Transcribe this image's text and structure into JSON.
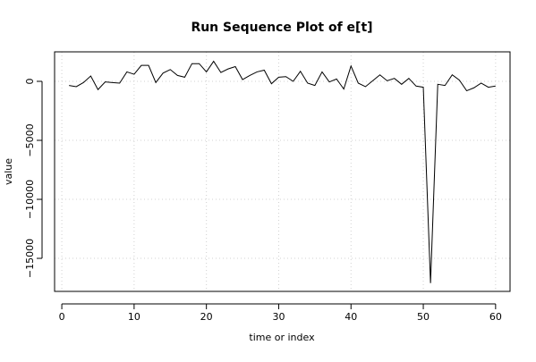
{
  "chart_data": {
    "type": "line",
    "title": "Run Sequence Plot of e[t]",
    "xlabel": "time or index",
    "ylabel": "value",
    "xlim": [
      -1,
      62
    ],
    "ylim": [
      -17800,
      2500
    ],
    "x_ticks": [
      0,
      10,
      20,
      30,
      40,
      50,
      60
    ],
    "y_ticks": [
      0,
      -5000,
      -10000,
      -15000
    ],
    "grid": true,
    "legend": "none",
    "series": [
      {
        "x": [
          1,
          2,
          3,
          4,
          5,
          6,
          7,
          8,
          9,
          10,
          11,
          12,
          13,
          14,
          15,
          16,
          17,
          18,
          19,
          20,
          21,
          22,
          23,
          24,
          25,
          26,
          27,
          28,
          29,
          30,
          31,
          32,
          33,
          34,
          35,
          36,
          37,
          38,
          39,
          40,
          41,
          42,
          43,
          44,
          45,
          46,
          47,
          48,
          49,
          50,
          51,
          52,
          53,
          54,
          55,
          56,
          57,
          58,
          59,
          60
        ],
        "values": [
          -350,
          -450,
          -100,
          450,
          -700,
          -50,
          -100,
          -150,
          800,
          600,
          1350,
          1350,
          -100,
          700,
          1000,
          500,
          350,
          1500,
          1500,
          800,
          1700,
          750,
          1050,
          1250,
          150,
          500,
          800,
          950,
          -200,
          350,
          400,
          0,
          850,
          -150,
          -350,
          800,
          -50,
          200,
          -650,
          1300,
          -150,
          -450,
          50,
          550,
          50,
          250,
          -250,
          250,
          -400,
          -500,
          -17100,
          -250,
          -350,
          550,
          100,
          -800,
          -550,
          -150,
          -500,
          -400
        ]
      }
    ],
    "colors": {
      "line": "#000000",
      "grid": "#d0d0d0",
      "background": "#ffffff"
    }
  }
}
